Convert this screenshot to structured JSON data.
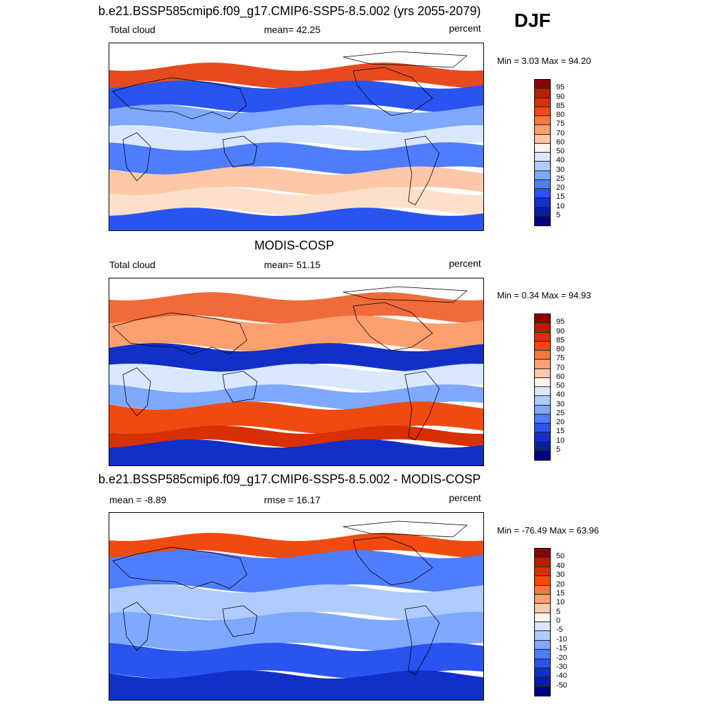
{
  "season_label": "DJF",
  "panels": [
    {
      "title": "b.e21.BSSP585cmip6.f09_g17.CMIP6-SSP5-8.5.002 (yrs 2055-2079)",
      "left_label": "Total cloud",
      "center_label": "mean=  42.25",
      "right_label": "percent",
      "minmax": "Min =   3.03 Max =  94.20",
      "colorbar_labels": [
        "95",
        "90",
        "85",
        "80",
        "75",
        "70",
        "60",
        "50",
        "40",
        "30",
        "25",
        "20",
        "15",
        "10",
        "5"
      ],
      "colorbar_colors": [
        "#8b0000",
        "#b22000",
        "#d83000",
        "#f04a10",
        "#fa7840",
        "#fca070",
        "#fdc8a8",
        "#fff3ea",
        "#d9e8ff",
        "#b0ccff",
        "#7fa8ff",
        "#4f7dff",
        "#2a54f0",
        "#1030c8",
        "#0a1ea0",
        "#000080"
      ],
      "field": "model"
    },
    {
      "title": "MODIS-COSP",
      "left_label": "Total cloud",
      "center_label": "mean=  51.15",
      "right_label": "percent",
      "minmax": "Min =   0.34 Max =  94.93",
      "colorbar_labels": [
        "95",
        "90",
        "85",
        "80",
        "75",
        "70",
        "60",
        "50",
        "40",
        "30",
        "25",
        "20",
        "15",
        "10",
        "5"
      ],
      "colorbar_colors": [
        "#8b0000",
        "#b22000",
        "#d83000",
        "#f04a10",
        "#fa7840",
        "#fca070",
        "#fdc8a8",
        "#fff3ea",
        "#d9e8ff",
        "#b0ccff",
        "#7fa8ff",
        "#4f7dff",
        "#2a54f0",
        "#1030c8",
        "#0a1ea0",
        "#000080"
      ],
      "field": "obs"
    },
    {
      "title": "b.e21.BSSP585cmip6.f09_g17.CMIP6-SSP5-8.5.002 - MODIS-COSP",
      "left_label": "mean =  -8.89",
      "center_label": "rmse =  16.17",
      "right_label": "percent",
      "minmax": "Min = -76.49 Max =  63.96",
      "colorbar_labels": [
        "50",
        "40",
        "30",
        "20",
        "15",
        "10",
        "5",
        "0",
        "-5",
        "-10",
        "-15",
        "-20",
        "-30",
        "-40",
        "-50"
      ],
      "colorbar_colors": [
        "#8b0000",
        "#b22000",
        "#d83000",
        "#f04a10",
        "#fa7840",
        "#fca070",
        "#fdc8a8",
        "#fff3ea",
        "#d9e8ff",
        "#b0ccff",
        "#7fa8ff",
        "#4f7dff",
        "#2a54f0",
        "#1030c8",
        "#0a1ea0",
        "#000080"
      ],
      "field": "diff"
    }
  ]
}
